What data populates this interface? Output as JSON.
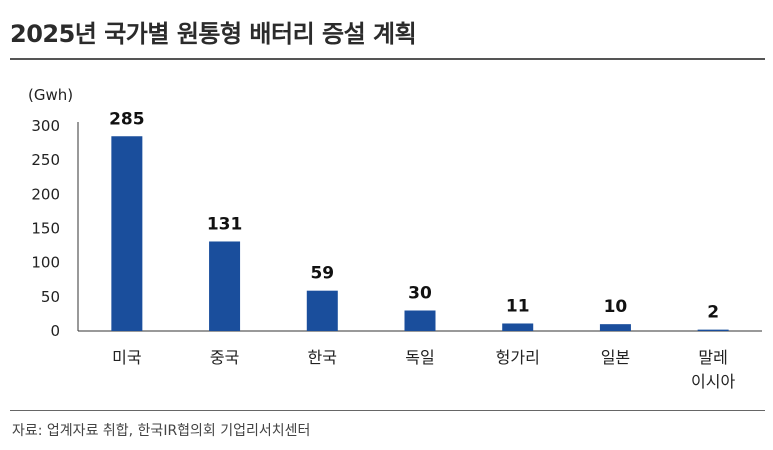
{
  "header": {
    "title": "2025년 국가별 원통형 배터리 증설 계획"
  },
  "footer": {
    "source": "자료: 업계자료 취합, 한국IR협의회 기업리서치센터"
  },
  "colors": {
    "bar": "#1a4e9c",
    "axis": "#333333"
  },
  "chart_data": {
    "type": "bar",
    "title": "2025년 국가별 원통형 배터리 증설 계획",
    "ylabel": "(Gwh)",
    "xlabel": "",
    "ylim": [
      0,
      300
    ],
    "yticks": [
      0,
      50,
      100,
      150,
      200,
      250,
      300
    ],
    "categories": [
      [
        "미국"
      ],
      [
        "중국"
      ],
      [
        "한국"
      ],
      [
        "독일"
      ],
      [
        "헝가리"
      ],
      [
        "일본"
      ],
      [
        "말레",
        "이시아"
      ]
    ],
    "values": [
      285,
      131,
      59,
      30,
      11,
      10,
      2
    ],
    "data_labels": [
      "285",
      "131",
      "59",
      "30",
      "11",
      "10",
      "2"
    ],
    "grid": false,
    "legend": "none"
  }
}
